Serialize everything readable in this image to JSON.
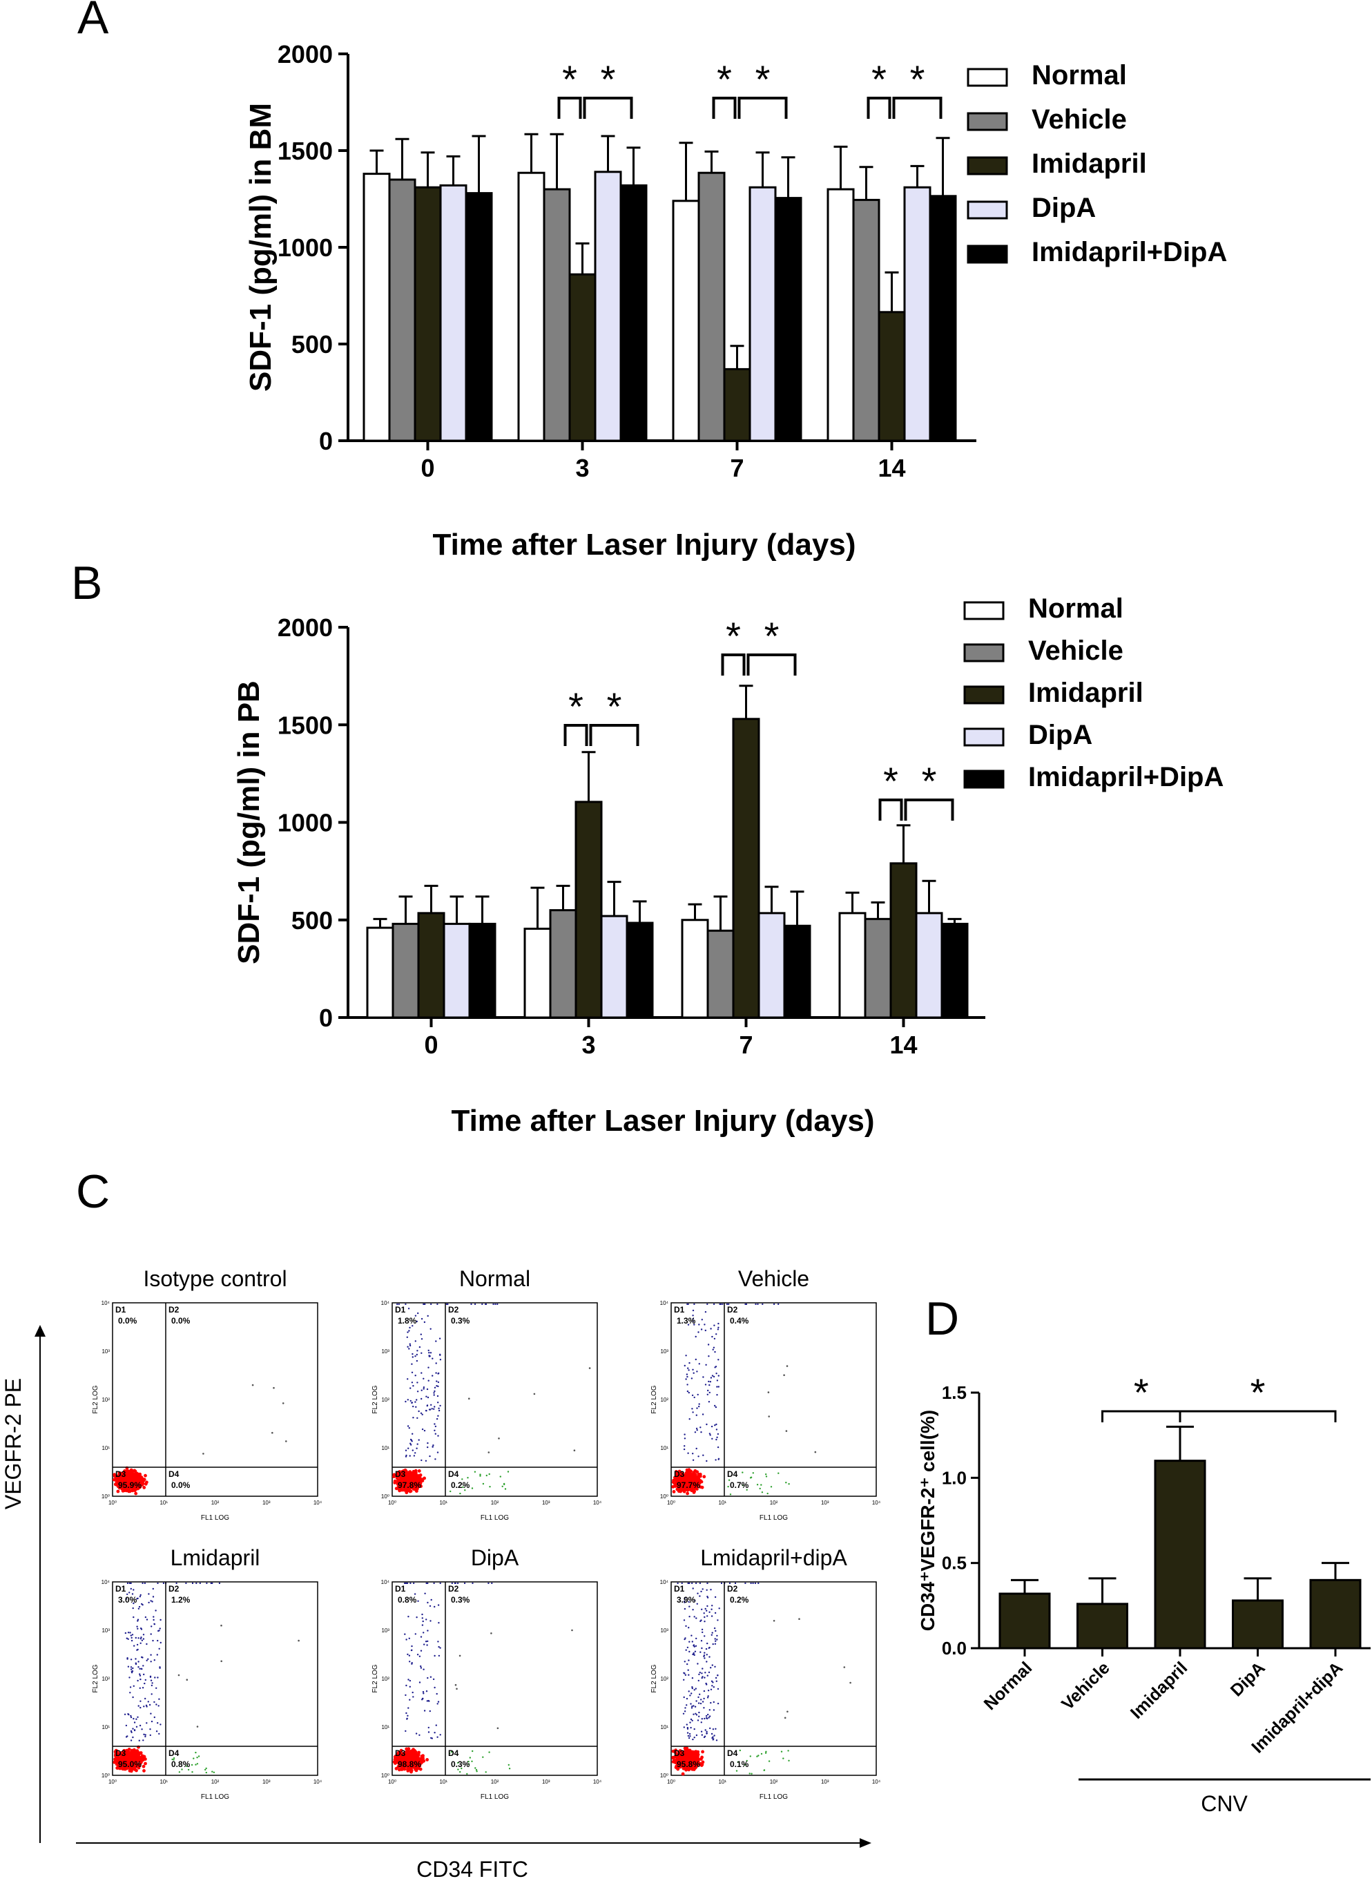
{
  "colors": {
    "Normal": "#ffffff",
    "Vehicle": "#808080",
    "Imidapril": "#26250f",
    "DipA": "#e2e3f8",
    "Imidapril+DipA": "#000000",
    "events_red": "#ff0000",
    "events_blue": "#1d1d8c",
    "events_green": "#2ca02c"
  },
  "panels": {
    "A": "A",
    "B": "B",
    "C": "C",
    "D": "D"
  },
  "flow": {
    "y_axis_label": "VEGFR-2 PE",
    "x_axis_label": "CD34 FITC",
    "fl1_label": "FL1 LOG",
    "fl2_label": "FL2 LOG",
    "decades": [
      "10⁰",
      "10¹",
      "10²",
      "10³",
      "10⁴"
    ],
    "plots": [
      {
        "title": "Isotype control",
        "quadrants": [
          "D1",
          "D2",
          "D3",
          "D4"
        ],
        "values": [
          "0.0%",
          "0.0%",
          "95.9%",
          "0.0%"
        ]
      },
      {
        "title": "Normal",
        "quadrants": [
          "D1",
          "D2",
          "D3",
          "D4"
        ],
        "values": [
          "1.8%",
          "0.3%",
          "97.8%",
          "0.2%"
        ]
      },
      {
        "title": "Vehicle",
        "quadrants": [
          "D1",
          "D2",
          "D3",
          "D4"
        ],
        "values": [
          "1.3%",
          "0.4%",
          "97.7%",
          "0.7%"
        ]
      },
      {
        "title": "Lmidapril",
        "quadrants": [
          "D1",
          "D2",
          "D3",
          "D4"
        ],
        "values": [
          "3.0%",
          "1.2%",
          "95.0%",
          "0.8%"
        ]
      },
      {
        "title": "DipA",
        "quadrants": [
          "D1",
          "D2",
          "D3",
          "D4"
        ],
        "values": [
          "0.8%",
          "0.3%",
          "98.8%",
          "0.3%"
        ]
      },
      {
        "title": "Lmidapril+dipA",
        "quadrants": [
          "D1",
          "D2",
          "D3",
          "D4"
        ],
        "values": [
          "3.9%",
          "0.2%",
          "95.8%",
          "0.1%"
        ]
      }
    ]
  },
  "chart_data": [
    {
      "panel": "A",
      "type": "bar",
      "title": "",
      "xlabel": "Time after Laser Injury (days)",
      "ylabel": "SDF-1 (pg/ml) in BM",
      "categories": [
        "0",
        "3",
        "7",
        "14"
      ],
      "ylim": [
        0,
        2000
      ],
      "yticks": [
        "0",
        "500",
        "1000",
        "1500",
        "2000"
      ],
      "legend_position": "top-right",
      "series": [
        {
          "name": "Normal",
          "values": [
            1380,
            1385,
            1240,
            1300
          ],
          "errors": [
            120,
            200,
            300,
            220
          ]
        },
        {
          "name": "Vehicle",
          "values": [
            1350,
            1300,
            1385,
            1245
          ],
          "errors": [
            210,
            285,
            110,
            170
          ]
        },
        {
          "name": "Imidapril",
          "values": [
            1310,
            860,
            370,
            665
          ],
          "errors": [
            180,
            160,
            120,
            205
          ]
        },
        {
          "name": "DipA",
          "values": [
            1320,
            1390,
            1310,
            1310
          ],
          "errors": [
            150,
            185,
            180,
            110
          ]
        },
        {
          "name": "Imidapril+DipA",
          "values": [
            1280,
            1320,
            1255,
            1265
          ],
          "errors": [
            295,
            195,
            210,
            300
          ]
        }
      ],
      "significance": [
        {
          "category": "3",
          "mark": "*"
        },
        {
          "category": "3",
          "mark": "*"
        },
        {
          "category": "7",
          "mark": "*"
        },
        {
          "category": "7",
          "mark": "*"
        },
        {
          "category": "14",
          "mark": "*"
        },
        {
          "category": "14",
          "mark": "*"
        }
      ]
    },
    {
      "panel": "B",
      "type": "bar",
      "title": "",
      "xlabel": "Time after Laser Injury (days)",
      "ylabel": "SDF-1 (pg/ml) in PB",
      "categories": [
        "0",
        "3",
        "7",
        "14"
      ],
      "ylim": [
        0,
        2000
      ],
      "yticks": [
        "0",
        "500",
        "1000",
        "1500",
        "2000"
      ],
      "legend_position": "top-right",
      "series": [
        {
          "name": "Normal",
          "values": [
            460,
            455,
            500,
            535
          ],
          "errors": [
            45,
            210,
            80,
            105
          ]
        },
        {
          "name": "Vehicle",
          "values": [
            480,
            550,
            445,
            505
          ],
          "errors": [
            140,
            125,
            175,
            85
          ]
        },
        {
          "name": "Imidapril",
          "values": [
            535,
            1105,
            1530,
            790
          ],
          "errors": [
            140,
            255,
            170,
            195
          ]
        },
        {
          "name": "DipA",
          "values": [
            480,
            520,
            535,
            535
          ],
          "errors": [
            140,
            175,
            135,
            165
          ]
        },
        {
          "name": "Imidapril+DipA",
          "values": [
            480,
            485,
            470,
            480
          ],
          "errors": [
            140,
            110,
            175,
            25
          ]
        }
      ],
      "significance": [
        {
          "category": "3",
          "mark": "*"
        },
        {
          "category": "3",
          "mark": "*"
        },
        {
          "category": "7",
          "mark": "*"
        },
        {
          "category": "7",
          "mark": "*"
        },
        {
          "category": "14",
          "mark": "*"
        },
        {
          "category": "14",
          "mark": "*"
        }
      ]
    },
    {
      "panel": "D",
      "type": "bar",
      "title": "",
      "xlabel": "",
      "ylabel": "CD34⁺VEGFR-2⁺ cell(%)",
      "categories": [
        "Normal",
        "Vehicle",
        "Imidapril",
        "DipA",
        "Imidapril+dipA"
      ],
      "group_label": "CNV",
      "ylim": [
        0,
        1.5
      ],
      "yticks": [
        "0.0",
        "0.5",
        "1.0",
        "1.5"
      ],
      "values": [
        0.32,
        0.26,
        1.1,
        0.28,
        0.4
      ],
      "errors": [
        0.08,
        0.15,
        0.2,
        0.13,
        0.1
      ],
      "significance": [
        {
          "mark": "*"
        },
        {
          "mark": "*"
        }
      ]
    }
  ]
}
